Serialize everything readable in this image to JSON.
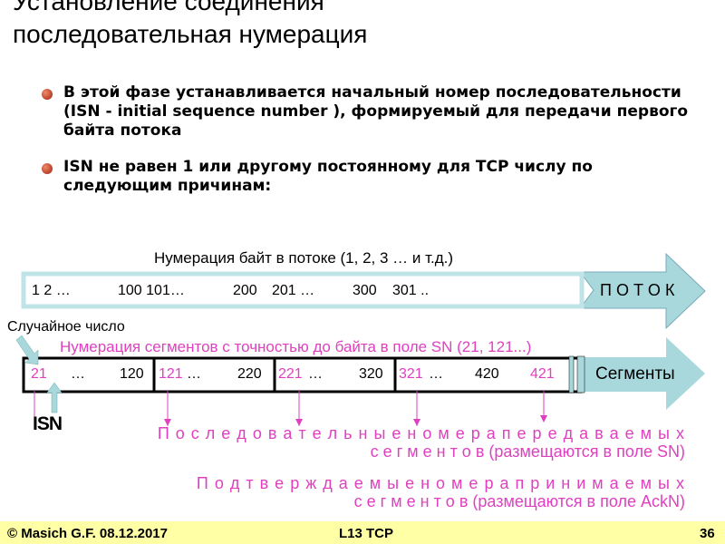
{
  "title": {
    "line1": "Установление соединения",
    "line2": " последовательная нумерация"
  },
  "bullets": [
    "В этой фазе устанавливается начальный номер последовательности (ISN - initial sequence number ), формируемый для передачи первого байта потока",
    "ISN не равен 1 или другому постоянному для TCP числу по следующим причинам:"
  ],
  "stream": {
    "caption": "Нумерация байт в потоке (1, 2, 3 … и т.д.)",
    "numbers": [
      "1 2 …",
      "100 101…",
      "200",
      "201 …",
      "300",
      "301 .."
    ],
    "label": "П О Т О К"
  },
  "segments": {
    "random_label": "Случайное число",
    "caption": "Нумерация сегментов с точностью до байта в поле SN (21, 121...)",
    "label": "Сегменты",
    "cells": [
      {
        "start": "21",
        "mid": "…",
        "end": "120"
      },
      {
        "start": "121",
        "mid": "…",
        "end": "220"
      },
      {
        "start": "221",
        "mid": " …",
        "end": "320"
      },
      {
        "start": "321",
        "mid": " …",
        "end": "420"
      },
      {
        "start": "421",
        "mid": "",
        "end": ""
      }
    ],
    "isn": "ISN"
  },
  "notes": {
    "sent_line1": "П о с л е д о в а т е л ь н ы е   н о м е р а   п е р е д а в а е м ы х",
    "sent_line2": "с е г м е н т о в   (размещаются в поле SN)",
    "ack_line1": "П о д т в е р ж д а е м ы е   н о м е р а   п р и н и м а е м ы х",
    "ack_line2": "с е г м е н т о в    (размещаются в поле AckN)"
  },
  "footer": {
    "author": "© Masich G.F. 08.12.2017",
    "lecture": "L13 TCP",
    "page": "36"
  },
  "colors": {
    "accent": "#e040c0",
    "arrow": "#a8d8dc",
    "footer": "#ffffa6"
  }
}
